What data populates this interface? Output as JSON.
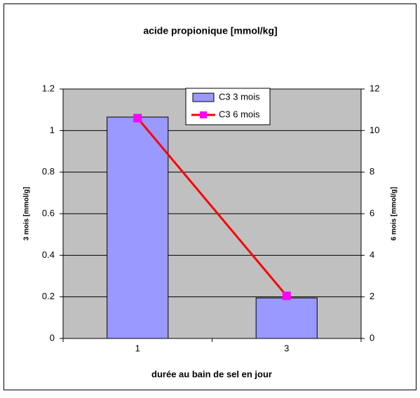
{
  "chart_data": {
    "type": "bar",
    "title": "acide propionique [mmol/kg]",
    "categories": [
      "1",
      "3"
    ],
    "series": [
      {
        "name": "C3 3 mois",
        "color": "#9999ff",
        "values": [
          1.065,
          0.195
        ]
      },
      {
        "name": "C3 6 mois",
        "color": "#ff0000",
        "marker_color": "#ff00ff",
        "type": "line",
        "axis": "y2",
        "values": [
          10.6,
          2.05
        ]
      }
    ],
    "ylim": [
      0,
      1.2
    ],
    "yticks": [
      0,
      0.2,
      0.4,
      0.6,
      0.8,
      1,
      1.2
    ],
    "y2lim": [
      0,
      12
    ],
    "y2ticks": [
      0,
      2,
      4,
      6,
      8,
      10,
      12
    ],
    "ylabel": "3 mois [mmol/g]",
    "y2label": "6 mois [mmol/g]",
    "xlabel": "durée au bain de sel en jour",
    "grid": true,
    "legend": "top"
  }
}
